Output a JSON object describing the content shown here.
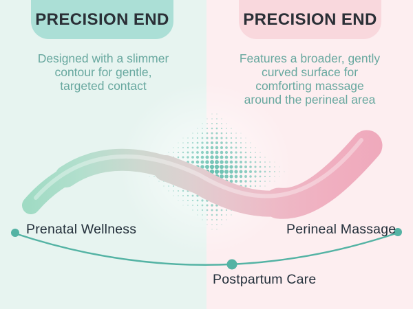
{
  "left_panel": {
    "badge": "PRECISION END",
    "description": "Designed with a slimmer\ncontour for gentle,\ntargeted contact",
    "label": "Prenatal Wellness"
  },
  "right_panel": {
    "badge": "PRECISION END",
    "description": "Features a broader, gently\ncurved surface for\ncomforting massage\naround the perineal area",
    "label": "Perineal Massage"
  },
  "bottom": {
    "label": "Postpartum Care"
  },
  "colors": {
    "left_bg": "#e7f4f0",
    "right_bg": "#fdeef0",
    "left_badge_bg": "#abdfd6",
    "right_badge_bg": "#f9d8dd",
    "heading_text": "#2a2f36",
    "description_text": "#68a89f",
    "label_text": "#232f3a",
    "accent_teal": "#54b3a4",
    "halftone_dot": "#5ebcab",
    "wand_mint": "#a5dcc6",
    "wand_gray": "#d8d4d1",
    "wand_pink": "#efaabd"
  }
}
